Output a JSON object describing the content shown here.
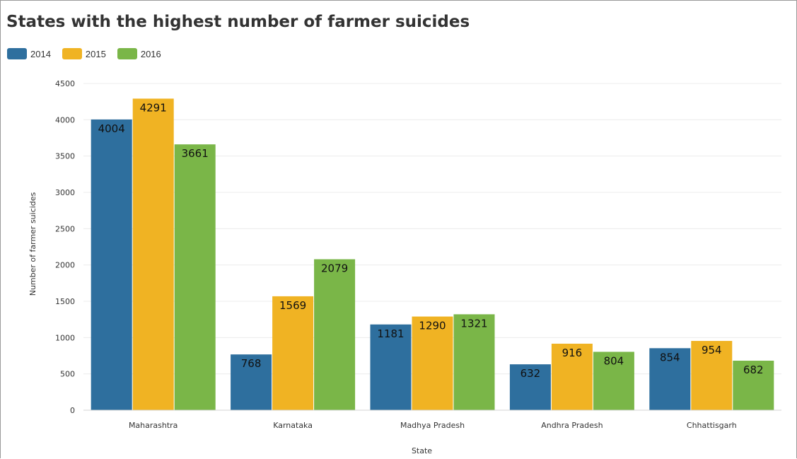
{
  "chart_data": {
    "type": "bar",
    "title": "States with the highest number of farmer suicides",
    "xlabel": "State",
    "ylabel": "Number of farmer suicides",
    "categories": [
      "Maharashtra",
      "Karnataka",
      "Madhya Pradesh",
      "Andhra Pradesh",
      "Chhattisgarh"
    ],
    "series": [
      {
        "name": "2014",
        "color": "#2e6f9e",
        "values": [
          4004,
          768,
          1181,
          632,
          854
        ]
      },
      {
        "name": "2015",
        "color": "#f0b323",
        "values": [
          4291,
          1569,
          1290,
          916,
          954
        ]
      },
      {
        "name": "2016",
        "color": "#7ab648",
        "values": [
          3661,
          2079,
          1321,
          804,
          682
        ]
      }
    ],
    "ylim": [
      0,
      4500
    ],
    "yticks": [
      0,
      500,
      1000,
      1500,
      2000,
      2500,
      3000,
      3500,
      4000,
      4500
    ],
    "grid": true,
    "legend_position": "top-left"
  }
}
